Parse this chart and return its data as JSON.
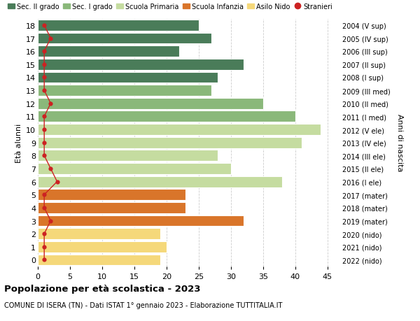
{
  "ages": [
    18,
    17,
    16,
    15,
    14,
    13,
    12,
    11,
    10,
    9,
    8,
    7,
    6,
    5,
    4,
    3,
    2,
    1,
    0
  ],
  "years": [
    "2004 (V sup)",
    "2005 (IV sup)",
    "2006 (III sup)",
    "2007 (II sup)",
    "2008 (I sup)",
    "2009 (III med)",
    "2010 (II med)",
    "2011 (I med)",
    "2012 (V ele)",
    "2013 (IV ele)",
    "2014 (III ele)",
    "2015 (II ele)",
    "2016 (I ele)",
    "2017 (mater)",
    "2018 (mater)",
    "2019 (mater)",
    "2020 (nido)",
    "2021 (nido)",
    "2022 (nido)"
  ],
  "bar_values": [
    25,
    27,
    22,
    32,
    28,
    27,
    35,
    40,
    44,
    41,
    28,
    30,
    38,
    23,
    23,
    32,
    19,
    20,
    19
  ],
  "bar_colors": [
    "#4a7c59",
    "#4a7c59",
    "#4a7c59",
    "#4a7c59",
    "#4a7c59",
    "#8ab87a",
    "#8ab87a",
    "#8ab87a",
    "#c5dca0",
    "#c5dca0",
    "#c5dca0",
    "#c5dca0",
    "#c5dca0",
    "#d9752a",
    "#d9752a",
    "#d9752a",
    "#f5d87a",
    "#f5d87a",
    "#f5d87a"
  ],
  "stranieri_values": [
    1,
    2,
    1,
    1,
    1,
    1,
    2,
    1,
    1,
    1,
    1,
    2,
    3,
    1,
    1,
    2,
    1,
    1,
    1
  ],
  "stranieri_color": "#cc2222",
  "legend_labels": [
    "Sec. II grado",
    "Sec. I grado",
    "Scuola Primaria",
    "Scuola Infanzia",
    "Asilo Nido",
    "Stranieri"
  ],
  "legend_colors": [
    "#4a7c59",
    "#8ab87a",
    "#c5dca0",
    "#d9752a",
    "#f5d87a",
    "#cc2222"
  ],
  "xlabel_vals": [
    0,
    5,
    10,
    15,
    20,
    25,
    30,
    35,
    40,
    45
  ],
  "xlim": [
    0,
    47
  ],
  "ylabel_left": "Età alunni",
  "ylabel_right": "Anni di nascita",
  "title": "Popolazione per età scolastica - 2023",
  "subtitle": "COMUNE DI ISERA (TN) - Dati ISTAT 1° gennaio 2023 - Elaborazione TUTTITALIA.IT",
  "bg_color": "#ffffff",
  "grid_color": "#cccccc"
}
